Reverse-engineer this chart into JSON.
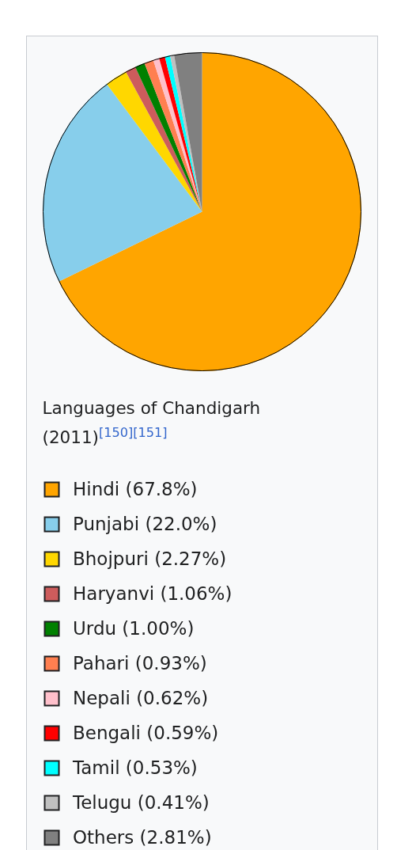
{
  "chart_data": {
    "type": "pie",
    "title": "Languages of Chandigarh (2011)$^{[150][151]}$",
    "categories": [
      "Hindi",
      "Punjabi",
      "Bhojpuri",
      "Haryanvi",
      "Urdu",
      "Pahari",
      "Nepali",
      "Bengali",
      "Tamil",
      "Telugu",
      "Others"
    ],
    "values": [
      67.8,
      22.0,
      2.27,
      1.06,
      1.0,
      0.93,
      0.62,
      0.59,
      0.53,
      0.41,
      2.81
    ],
    "value_labels": [
      "(67.8%)",
      "(22.0%)",
      "(2.27%)",
      "(1.06%)",
      "(1.00%)",
      "(0.93%)",
      "(0.62%)",
      "(0.59%)",
      "(0.53%)",
      "(0.41%)",
      "(2.81%)"
    ],
    "colors": [
      "#ffa500",
      "#87ceeb",
      "#ffd700",
      "#cd5c5c",
      "#008000",
      "#ff7f50",
      "#ffc0cb",
      "#ff0000",
      "#00ffff",
      "#c0c0c0",
      "#808080"
    ],
    "legend": "bottom"
  }
}
